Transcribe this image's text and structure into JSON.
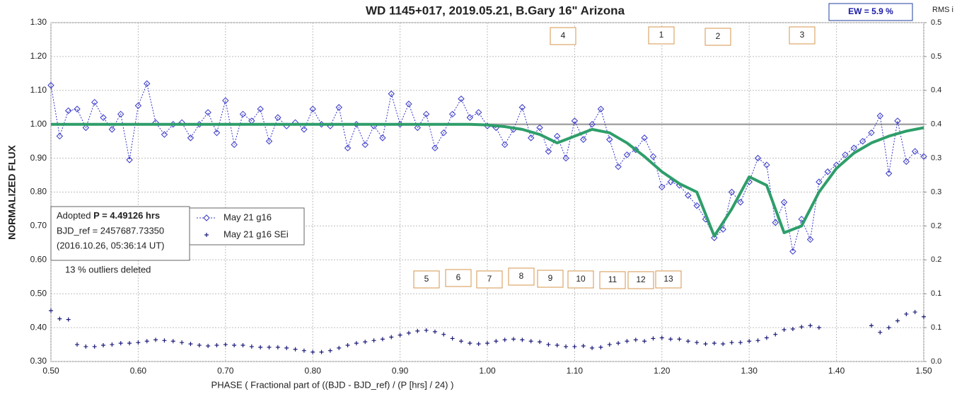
{
  "chart_data": {
    "type": "scatter",
    "title": "WD 1145+017, 2019.05.21, B.Gary 16\" Arizona",
    "ew_label": "EW =  5.9 %",
    "y2_title": "RMS i",
    "ylabel": "NORMALIZED FLUX",
    "xlabel": "PHASE ( Fractional part of ((BJD - BJD_ref) / (P [hrs] / 24) )",
    "note_adopted": "Adopted",
    "note_period": "P = 4.49126 hrs",
    "note_bjd": "BJD_ref = 2457687.73350",
    "note_date": "(2016.10.26, 05:36:14 UT)",
    "note_outliers": "13 % outliers deleted",
    "dip_labels": [
      "1",
      "2",
      "3",
      "4",
      "5",
      "6",
      "7",
      "8",
      "9",
      "10",
      "11",
      "12",
      "13"
    ],
    "xlim": [
      0.5,
      1.5
    ],
    "xticks": [
      {
        "value": 0.5,
        "label": "0.50"
      },
      {
        "value": 0.6,
        "label": "0.60"
      },
      {
        "value": 0.7,
        "label": "0.70"
      },
      {
        "value": 0.8,
        "label": "0.80"
      },
      {
        "value": 0.9,
        "label": "0.90"
      },
      {
        "value": 1.0,
        "label": "1.00"
      },
      {
        "value": 1.1,
        "label": "1.10"
      },
      {
        "value": 1.2,
        "label": "1.20"
      },
      {
        "value": 1.3,
        "label": "1.30"
      },
      {
        "value": 1.4,
        "label": "1.40"
      },
      {
        "value": 1.5,
        "label": "1.50"
      }
    ],
    "ylim": [
      0.3,
      1.3
    ],
    "yticks": [
      {
        "value": 0.3,
        "label": "0.30"
      },
      {
        "value": 0.4,
        "label": "0.40"
      },
      {
        "value": 0.5,
        "label": "0.50"
      },
      {
        "value": 0.6,
        "label": "0.60"
      },
      {
        "value": 0.7,
        "label": "0.70"
      },
      {
        "value": 0.8,
        "label": "0.80"
      },
      {
        "value": 0.9,
        "label": "0.90"
      },
      {
        "value": 1.0,
        "label": "1.00"
      },
      {
        "value": 1.1,
        "label": "1.10"
      },
      {
        "value": 1.2,
        "label": "1.20"
      },
      {
        "value": 1.3,
        "label": "1.30"
      }
    ],
    "y2lim": [
      0,
      0.5
    ],
    "y2ticks": [
      {
        "value": 0,
        "label": "0.0"
      },
      {
        "value": 0.05,
        "label": "0.1"
      },
      {
        "value": 0.1,
        "label": "0.1"
      },
      {
        "value": 0.15,
        "label": "0.2"
      },
      {
        "value": 0.2,
        "label": "0.2"
      },
      {
        "value": 0.25,
        "label": "0.3"
      },
      {
        "value": 0.3,
        "label": "0.3"
      },
      {
        "value": 0.35,
        "label": "0.4"
      },
      {
        "value": 0.4,
        "label": "0.4"
      },
      {
        "value": 0.45,
        "label": "0.5"
      },
      {
        "value": 0.5,
        "label": "0.5"
      }
    ],
    "grid": true,
    "baseline": 1.0,
    "baseline_color": "#a6a6a6",
    "model": {
      "color": "#2e9e6a",
      "x": [
        0.5,
        0.52,
        0.54,
        0.56,
        0.58,
        0.6,
        0.62,
        0.64,
        0.66,
        0.68,
        0.7,
        0.72,
        0.74,
        0.76,
        0.78,
        0.8,
        0.82,
        0.84,
        0.86,
        0.88,
        0.9,
        0.92,
        0.94,
        0.96,
        0.98,
        1.0,
        1.02,
        1.04,
        1.06,
        1.08,
        1.1,
        1.12,
        1.14,
        1.16,
        1.18,
        1.2,
        1.22,
        1.24,
        1.26,
        1.28,
        1.3,
        1.32,
        1.34,
        1.36,
        1.38,
        1.4,
        1.42,
        1.44,
        1.46,
        1.48,
        1.5
      ],
      "values": [
        1,
        1,
        1,
        1,
        1,
        1,
        1,
        1,
        1,
        1,
        1,
        1,
        1,
        1,
        1,
        1,
        1,
        1,
        1,
        1,
        1,
        1,
        1,
        1,
        1,
        0.998,
        0.993,
        0.985,
        0.97,
        0.945,
        0.965,
        0.985,
        0.975,
        0.945,
        0.905,
        0.86,
        0.825,
        0.8,
        0.67,
        0.75,
        0.845,
        0.82,
        0.68,
        0.7,
        0.8,
        0.87,
        0.915,
        0.945,
        0.965,
        0.98,
        0.99
      ]
    },
    "x": [
      0.5,
      0.51,
      0.52,
      0.53,
      0.54,
      0.55,
      0.56,
      0.57,
      0.58,
      0.59,
      0.6,
      0.61,
      0.62,
      0.63,
      0.64,
      0.65,
      0.66,
      0.67,
      0.68,
      0.69,
      0.7,
      0.71,
      0.72,
      0.73,
      0.74,
      0.75,
      0.76,
      0.77,
      0.78,
      0.79,
      0.8,
      0.81,
      0.82,
      0.83,
      0.84,
      0.85,
      0.86,
      0.87,
      0.88,
      0.89,
      0.9,
      0.91,
      0.92,
      0.93,
      0.94,
      0.95,
      0.96,
      0.97,
      0.98,
      0.99,
      1.0,
      1.01,
      1.02,
      1.03,
      1.04,
      1.05,
      1.06,
      1.07,
      1.08,
      1.09,
      1.1,
      1.11,
      1.12,
      1.13,
      1.14,
      1.15,
      1.16,
      1.17,
      1.18,
      1.19,
      1.2,
      1.21,
      1.22,
      1.23,
      1.24,
      1.25,
      1.26,
      1.27,
      1.28,
      1.29,
      1.3,
      1.31,
      1.32,
      1.33,
      1.34,
      1.35,
      1.36,
      1.37,
      1.38,
      1.39,
      1.4,
      1.41,
      1.42,
      1.43,
      1.44,
      1.45,
      1.46,
      1.47,
      1.48,
      1.49,
      1.5
    ],
    "series": [
      {
        "name": "May 21 g16",
        "color": "#3535c8",
        "values": [
          1.115,
          0.965,
          1.04,
          1.045,
          0.99,
          1.065,
          1.02,
          0.985,
          1.03,
          0.895,
          1.055,
          1.12,
          1.005,
          0.97,
          1.0,
          1.005,
          0.96,
          1.0,
          1.035,
          0.975,
          1.07,
          0.94,
          1.03,
          1.01,
          1.045,
          0.95,
          1.02,
          0.995,
          1.005,
          0.985,
          1.045,
          1.0,
          0.995,
          1.05,
          0.93,
          1.0,
          0.94,
          0.995,
          0.96,
          1.09,
          1.0,
          1.06,
          0.99,
          1.03,
          0.93,
          0.975,
          1.03,
          1.075,
          1.02,
          1.035,
          0.995,
          0.99,
          0.94,
          0.985,
          1.05,
          0.96,
          0.99,
          0.92,
          0.965,
          0.9,
          1.01,
          0.955,
          1.0,
          1.045,
          0.955,
          0.875,
          0.91,
          0.925,
          0.96,
          0.905,
          0.815,
          0.83,
          0.82,
          0.79,
          0.76,
          0.72,
          0.665,
          0.69,
          0.8,
          0.77,
          0.83,
          0.9,
          0.88,
          0.71,
          0.77,
          0.625,
          0.72,
          0.66,
          0.83,
          0.86,
          0.88,
          0.91,
          0.93,
          0.95,
          0.975,
          1.025,
          0.855,
          1.01,
          0.89,
          0.92,
          0.905
        ]
      },
      {
        "name": "May 21 g16 SEi",
        "color": "#1a1a7a",
        "axis": "y2",
        "values": [
          0.075,
          0.063,
          0.062,
          0.025,
          0.022,
          0.022,
          0.024,
          0.025,
          0.027,
          0.027,
          0.028,
          0.03,
          0.032,
          0.031,
          0.03,
          0.028,
          0.026,
          0.024,
          0.023,
          0.024,
          0.025,
          0.024,
          0.024,
          0.022,
          0.021,
          0.021,
          0.021,
          0.02,
          0.018,
          0.016,
          0.014,
          0.014,
          0.016,
          0.02,
          0.024,
          0.027,
          0.029,
          0.031,
          0.033,
          0.036,
          0.039,
          0.042,
          0.045,
          0.046,
          0.044,
          0.04,
          0.034,
          0.03,
          0.027,
          0.026,
          0.027,
          0.03,
          0.032,
          0.033,
          0.032,
          0.03,
          0.029,
          0.025,
          0.024,
          0.022,
          0.022,
          0.023,
          0.02,
          0.021,
          0.025,
          0.027,
          0.03,
          0.032,
          0.03,
          0.034,
          0.035,
          0.033,
          0.033,
          0.03,
          0.028,
          0.026,
          0.027,
          0.026,
          0.028,
          0.028,
          0.03,
          0.031,
          0.035,
          0.04,
          0.047,
          0.048,
          0.051,
          0.053,
          0.05,
          null,
          null,
          null,
          null,
          null,
          0.053,
          0.043,
          0.05,
          0.06,
          0.07,
          0.073,
          0.066
        ]
      }
    ]
  }
}
